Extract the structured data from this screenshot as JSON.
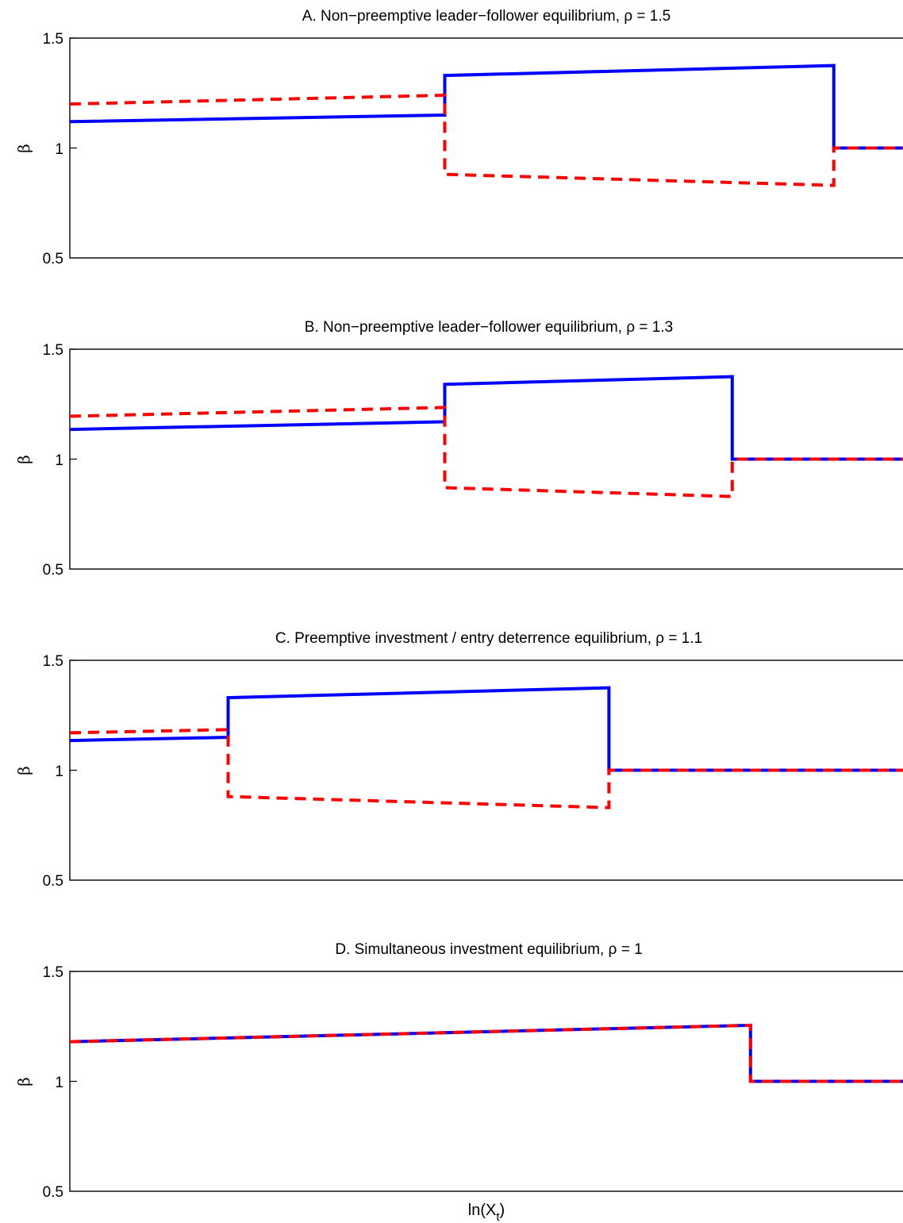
{
  "chart_data": [
    {
      "type": "line",
      "title": "A. Non−preemptive leader−follower equilibrium, ρ = 1.5",
      "ylabel": "β",
      "xlabel": "",
      "ylim": [
        0.5,
        1.5
      ],
      "yticks": [
        "0.5",
        "1",
        "1.5"
      ],
      "xlim": [
        0,
        1
      ],
      "grid": false,
      "series": [
        {
          "color": "#0000ff",
          "style": "solid",
          "x": [
            0,
            0.45,
            0.45,
            0.917,
            0.917,
            1
          ],
          "y": [
            1.12,
            1.15,
            1.33,
            1.375,
            1.0,
            1.0
          ]
        },
        {
          "color": "#ff0000",
          "style": "dashed",
          "x": [
            0,
            0.45,
            0.45,
            0.917,
            0.917,
            1
          ],
          "y": [
            1.2,
            1.24,
            0.88,
            0.83,
            1.0,
            1.0
          ]
        }
      ]
    },
    {
      "type": "line",
      "title": "B. Non−preemptive leader−follower equilibrium, ρ = 1.3",
      "ylabel": "β",
      "xlabel": "",
      "ylim": [
        0.5,
        1.5
      ],
      "yticks": [
        "0.5",
        "1",
        "1.5"
      ],
      "xlim": [
        0,
        1
      ],
      "grid": false,
      "series": [
        {
          "color": "#0000ff",
          "style": "solid",
          "x": [
            0,
            0.45,
            0.45,
            0.795,
            0.795,
            1
          ],
          "y": [
            1.135,
            1.17,
            1.34,
            1.375,
            1.0,
            1.0
          ]
        },
        {
          "color": "#ff0000",
          "style": "dashed",
          "x": [
            0,
            0.45,
            0.45,
            0.795,
            0.795,
            1
          ],
          "y": [
            1.195,
            1.235,
            0.87,
            0.83,
            1.0,
            1.0
          ]
        }
      ]
    },
    {
      "type": "line",
      "title": "C. Preemptive investment / entry deterrence equilibrium, ρ = 1.1",
      "ylabel": "β",
      "xlabel": "",
      "ylim": [
        0.5,
        1.5
      ],
      "yticks": [
        "0.5",
        "1",
        "1.5"
      ],
      "xlim": [
        0,
        1
      ],
      "grid": false,
      "series": [
        {
          "color": "#0000ff",
          "style": "solid",
          "x": [
            0,
            0.19,
            0.19,
            0.647,
            0.647,
            1
          ],
          "y": [
            1.135,
            1.15,
            1.33,
            1.375,
            1.0,
            1.0
          ]
        },
        {
          "color": "#ff0000",
          "style": "dashed",
          "x": [
            0,
            0.19,
            0.19,
            0.647,
            0.647,
            1
          ],
          "y": [
            1.17,
            1.185,
            0.88,
            0.83,
            1.0,
            1.0
          ]
        }
      ]
    },
    {
      "type": "line",
      "title": "D. Simultaneous investment equilibrium, ρ = 1",
      "ylabel": "β",
      "xlabel": "ln(X",
      "xlabel_sub": "t",
      "xlabel_end": ")",
      "ylim": [
        0.5,
        1.5
      ],
      "yticks": [
        "0.5",
        "1",
        "1.5"
      ],
      "xlim": [
        0,
        1
      ],
      "grid": false,
      "series": [
        {
          "color": "#0000ff",
          "style": "solid",
          "x": [
            0,
            0.817,
            0.817,
            1
          ],
          "y": [
            1.18,
            1.255,
            1.0,
            1.0
          ]
        },
        {
          "color": "#ff0000",
          "style": "dashed",
          "x": [
            0,
            0.817,
            0.817,
            1
          ],
          "y": [
            1.18,
            1.255,
            1.0,
            1.0
          ]
        }
      ]
    }
  ]
}
